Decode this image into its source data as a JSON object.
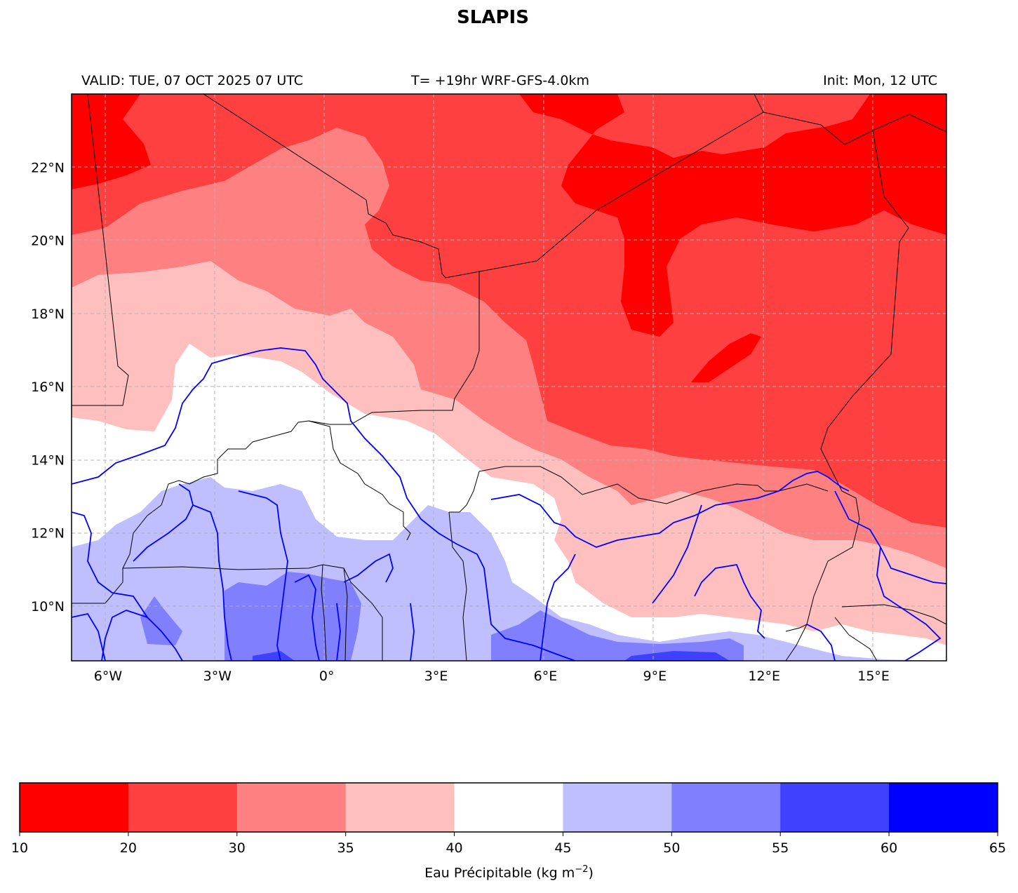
{
  "title": "SLAPIS",
  "subtitle_left": "VALID: TUE, 07 OCT 2025 07 UTC",
  "subtitle_center": "T= +19hr WRF-GFS-4.0km",
  "subtitle_right": "Init: Mon, 12 UTC",
  "map": {
    "extent": {
      "lon": [
        -7,
        17
      ],
      "lat": [
        8.5,
        24
      ]
    },
    "lon_ticks": [
      -6,
      -3,
      0,
      3,
      6,
      9,
      12,
      15
    ],
    "lon_tick_labels": [
      "6°W",
      "3°W",
      "0°",
      "3°E",
      "6°E",
      "9°E",
      "12°E",
      "15°E"
    ],
    "lat_ticks": [
      10,
      12,
      14,
      16,
      18,
      20,
      22
    ],
    "lat_tick_labels": [
      "10°N",
      "12°N",
      "14°N",
      "16°N",
      "18°N",
      "20°N",
      "22°N"
    ],
    "gridlines": true,
    "river_color": "#0000ff",
    "border_color": "#000000"
  },
  "colorbar": {
    "levels": [
      10,
      20,
      30,
      35,
      40,
      45,
      50,
      55,
      60,
      65
    ],
    "tick_labels": [
      "10",
      "20",
      "30",
      "35",
      "40",
      "45",
      "50",
      "55",
      "60",
      "65"
    ],
    "colors": [
      "#ff0000",
      "#ff4040",
      "#ff8080",
      "#ffbfbf",
      "#ffffff",
      "#bfbfff",
      "#8080ff",
      "#4040ff",
      "#0000ff"
    ],
    "label_main": "Eau Précipitable (kg m",
    "label_exp": "−2",
    "label_end": ")"
  }
}
